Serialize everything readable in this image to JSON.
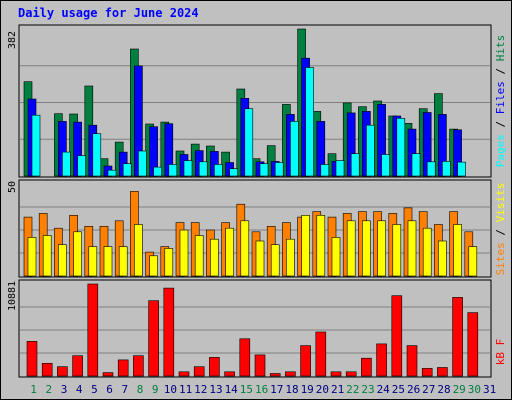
{
  "title": "Daily usage for June 2024",
  "colors": {
    "hits": "#008040",
    "files": "#0000ff",
    "pages": "#00ffff",
    "visits": "#ffff00",
    "sites": "#ff8000",
    "kbytes": "#ff0000",
    "weekend_day": "#008040",
    "weekday": "#000080"
  },
  "right_labels": {
    "top": {
      "pages": "Pages",
      "sep1": " / ",
      "files": "Files",
      "sep2": " / ",
      "hits": "Hits"
    },
    "middle": {
      "sites": "Sites",
      "sep": " / ",
      "visits": "Visits"
    },
    "bottom": {
      "kb": "kB F"
    }
  },
  "chart_data": [
    {
      "type": "bar",
      "name": "top",
      "categories": [
        "1",
        "2",
        "3",
        "4",
        "5",
        "6",
        "7",
        "8",
        "9",
        "10",
        "11",
        "12",
        "13",
        "14",
        "15",
        "16",
        "17",
        "18",
        "19",
        "20",
        "21",
        "22",
        "23",
        "24",
        "25",
        "26",
        "27",
        "28",
        "29",
        "30",
        "31"
      ],
      "ytick": "382",
      "ylim": [
        0,
        382
      ],
      "series": [
        {
          "name": "Hits",
          "values": [
            245,
            0,
            162,
            161,
            234,
            45,
            88,
            330,
            135,
            140,
            65,
            83,
            78,
            62,
            226,
            45,
            79,
            186,
            382,
            168,
            58,
            190,
            180,
            195,
            156,
            137,
            175,
            214,
            122,
            0,
            0
          ]
        },
        {
          "name": "Files",
          "values": [
            200,
            0,
            142,
            140,
            132,
            26,
            62,
            286,
            128,
            136,
            56,
            66,
            64,
            35,
            202,
            37,
            38,
            160,
            306,
            142,
            38,
            164,
            168,
            186,
            156,
            122,
            165,
            160,
            120,
            0,
            0
          ]
        },
        {
          "name": "Pages",
          "values": [
            158,
            0,
            62,
            53,
            110,
            15,
            32,
            65,
            23,
            30,
            40,
            37,
            30,
            19,
            175,
            32,
            35,
            142,
            282,
            30,
            40,
            58,
            132,
            56,
            150,
            58,
            37,
            38,
            36,
            0,
            0
          ]
        }
      ]
    },
    {
      "type": "bar",
      "name": "middle",
      "categories": [
        "1",
        "2",
        "3",
        "4",
        "5",
        "6",
        "7",
        "8",
        "9",
        "10",
        "11",
        "12",
        "13",
        "14",
        "15",
        "16",
        "17",
        "18",
        "19",
        "20",
        "21",
        "22",
        "23",
        "24",
        "25",
        "26",
        "27",
        "28",
        "29",
        "30",
        "31"
      ],
      "ytick": "50",
      "ylim": [
        0,
        50
      ],
      "series": [
        {
          "name": "Sites",
          "values": [
            32,
            34,
            26,
            33,
            27,
            27,
            30,
            46,
            13,
            16,
            29,
            29,
            25,
            29,
            39,
            24,
            27,
            29,
            32,
            35,
            32,
            34,
            35,
            35,
            34,
            37,
            35,
            28,
            35,
            24,
            0
          ]
        },
        {
          "name": "Visits",
          "values": [
            21,
            22,
            17,
            24,
            16,
            16,
            16,
            28,
            11,
            15,
            25,
            22,
            20,
            26,
            30,
            19,
            17,
            20,
            33,
            33,
            21,
            30,
            30,
            30,
            28,
            30,
            26,
            19,
            28,
            16,
            0
          ]
        }
      ]
    },
    {
      "type": "bar",
      "name": "bottom",
      "categories": [
        "1",
        "2",
        "3",
        "4",
        "5",
        "6",
        "7",
        "8",
        "9",
        "10",
        "11",
        "12",
        "13",
        "14",
        "15",
        "16",
        "17",
        "18",
        "19",
        "20",
        "21",
        "22",
        "23",
        "24",
        "25",
        "26",
        "27",
        "28",
        "29",
        "30",
        "31"
      ],
      "ytick": "10881",
      "ylim": [
        0,
        10881
      ],
      "series": [
        {
          "name": "kB F",
          "values": [
            4100,
            1500,
            1100,
            2400,
            10881,
            400,
            1900,
            2400,
            8900,
            10400,
            500,
            1100,
            2200,
            500,
            4400,
            2500,
            300,
            500,
            3600,
            5200,
            500,
            500,
            2100,
            3800,
            9500,
            3600,
            900,
            1000,
            9300,
            7500,
            0
          ]
        }
      ]
    }
  ],
  "x_labels": [
    {
      "t": "1",
      "w": true
    },
    {
      "t": "2",
      "w": true
    },
    {
      "t": "3",
      "w": false
    },
    {
      "t": "4",
      "w": false
    },
    {
      "t": "5",
      "w": false
    },
    {
      "t": "6",
      "w": false
    },
    {
      "t": "7",
      "w": false
    },
    {
      "t": "8",
      "w": true
    },
    {
      "t": "9",
      "w": true
    },
    {
      "t": "10",
      "w": false
    },
    {
      "t": "11",
      "w": false
    },
    {
      "t": "12",
      "w": false
    },
    {
      "t": "13",
      "w": false
    },
    {
      "t": "14",
      "w": false
    },
    {
      "t": "15",
      "w": true
    },
    {
      "t": "16",
      "w": true
    },
    {
      "t": "17",
      "w": false
    },
    {
      "t": "18",
      "w": false
    },
    {
      "t": "19",
      "w": false
    },
    {
      "t": "20",
      "w": false
    },
    {
      "t": "21",
      "w": false
    },
    {
      "t": "22",
      "w": true
    },
    {
      "t": "23",
      "w": true
    },
    {
      "t": "24",
      "w": false
    },
    {
      "t": "25",
      "w": false
    },
    {
      "t": "26",
      "w": false
    },
    {
      "t": "27",
      "w": false
    },
    {
      "t": "28",
      "w": false
    },
    {
      "t": "29",
      "w": true
    },
    {
      "t": "30",
      "w": true
    },
    {
      "t": "31",
      "w": false
    }
  ]
}
